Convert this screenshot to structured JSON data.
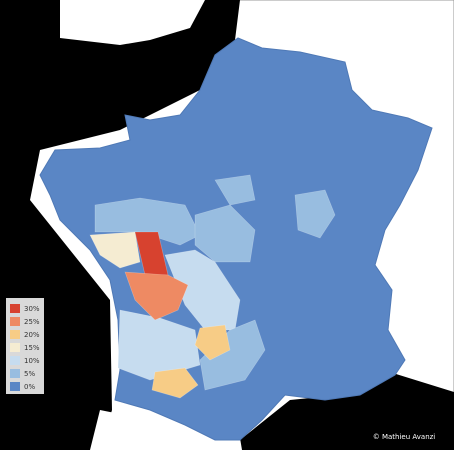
{
  "legend": {
    "items": [
      {
        "label": "30%",
        "color": "#d7422f"
      },
      {
        "label": "25%",
        "color": "#ee8a63"
      },
      {
        "label": "20%",
        "color": "#f7cc86"
      },
      {
        "label": "15%",
        "color": "#f5ecd2"
      },
      {
        "label": "10%",
        "color": "#c6dcef"
      },
      {
        "label": "5%",
        "color": "#98bde0"
      },
      {
        "label": "0%",
        "color": "#5a86c5"
      }
    ]
  },
  "credit": "© Mathieu Avanzi"
}
